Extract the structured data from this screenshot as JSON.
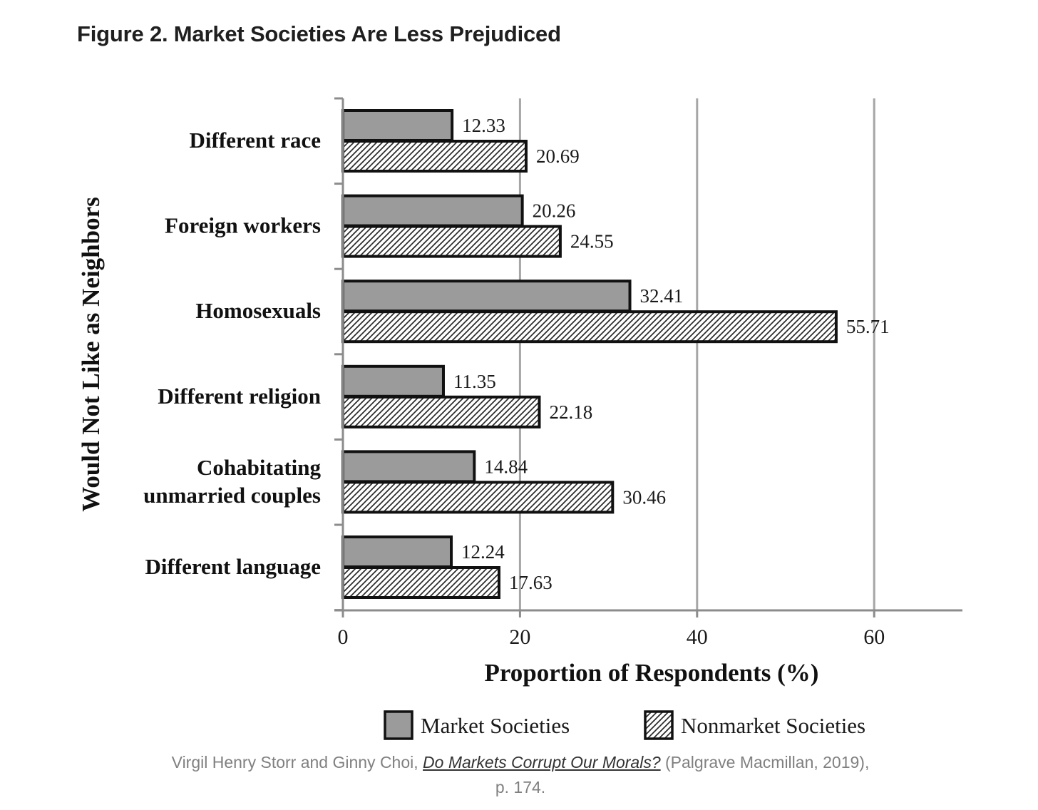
{
  "figure": {
    "title": "Figure 2. Market Societies Are Less Prejudiced"
  },
  "chart_data": {
    "type": "bar",
    "orientation": "horizontal",
    "categories": [
      "Different race",
      "Foreign workers",
      "Homosexuals",
      "Different religion",
      "Cohabitating unmarried couples",
      "Different language"
    ],
    "category_lines": [
      [
        "Different race"
      ],
      [
        "Foreign workers"
      ],
      [
        "Homosexuals"
      ],
      [
        "Different religion"
      ],
      [
        "Cohabitating",
        "unmarried couples"
      ],
      [
        "Different language"
      ]
    ],
    "series": [
      {
        "name": "Market Societies",
        "values": [
          12.33,
          20.26,
          32.41,
          11.35,
          14.84,
          12.24
        ],
        "labels": [
          "12.33",
          "20.26",
          "32.41",
          "11.35",
          "14.84",
          "12.24"
        ],
        "fill": "#9b9b9b",
        "pattern": "solid"
      },
      {
        "name": "Nonmarket Societies",
        "values": [
          20.69,
          24.55,
          55.71,
          22.18,
          30.46,
          17.63
        ],
        "labels": [
          "20.69",
          "24.55",
          "55.71",
          "22.18",
          "30.46",
          "17.63"
        ],
        "fill": "#ffffff",
        "pattern": "diagonal-hatch"
      }
    ],
    "xlabel": "Proportion of Respondents (%)",
    "ylabel": "Would Not Like as Neighbors",
    "xlim": [
      0,
      70
    ],
    "xticks": [
      0,
      20,
      40,
      60
    ],
    "grid": "vertical",
    "legend": "bottom"
  },
  "caption": {
    "authors": "Virgil Henry Storr and Ginny Choi, ",
    "book_title": "Do Markets Corrupt Our Morals?",
    "publisher": " (Palgrave Macmillan, 2019), p. 174."
  }
}
